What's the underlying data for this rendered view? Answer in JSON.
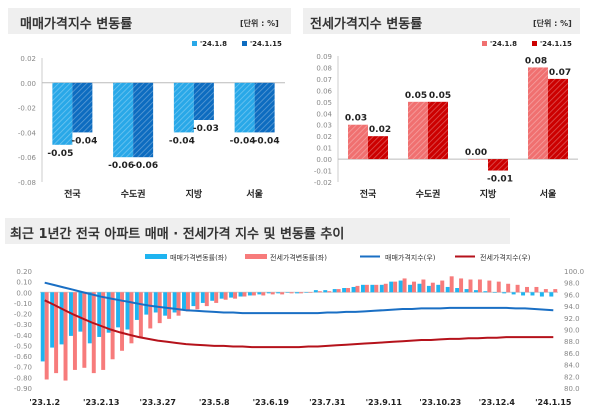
{
  "chart_data": [
    {
      "type": "bar",
      "title": "매매가격지수 변동률",
      "unit": "[단위 : %]",
      "categories": [
        "전국",
        "수도권",
        "지방",
        "서울"
      ],
      "series": [
        {
          "name": "'24.1.8",
          "color": "#29a8e8",
          "values": [
            -0.05,
            -0.06,
            -0.04,
            -0.04
          ]
        },
        {
          "name": "'24.1.15",
          "color": "#0d6cc0",
          "values": [
            -0.04,
            -0.06,
            -0.03,
            -0.04
          ]
        }
      ],
      "labels": [
        [
          "-0.05",
          "-0.06",
          "-0.04",
          "-0.04"
        ],
        [
          "-0.04",
          "-0.06",
          "-0.03",
          "-0.04"
        ]
      ],
      "ylim": [
        -0.08,
        0.02
      ],
      "yticks": [
        "0.02",
        "0.00",
        "-0.02",
        "-0.04",
        "-0.06",
        "-0.08"
      ]
    },
    {
      "type": "bar",
      "title": "전세가격지수 변동률",
      "unit": "[단위 : %]",
      "categories": [
        "전국",
        "수도권",
        "지방",
        "서울"
      ],
      "series": [
        {
          "name": "'24.1.8",
          "color": "#f07070",
          "values": [
            0.03,
            0.05,
            0.0,
            0.08
          ]
        },
        {
          "name": "'24.1.15",
          "color": "#cc0000",
          "values": [
            0.02,
            0.05,
            -0.01,
            0.07
          ]
        }
      ],
      "labels": [
        [
          "0.03",
          "0.05",
          "0.00",
          "0.08"
        ],
        [
          "0.02",
          "0.05",
          "-0.01",
          "0.07"
        ]
      ],
      "ylim": [
        -0.02,
        0.09
      ],
      "yticks": [
        "0.09",
        "0.08",
        "0.07",
        "0.06",
        "0.05",
        "0.04",
        "0.03",
        "0.02",
        "0.01",
        "0.00",
        "-0.01",
        "-0.02"
      ]
    },
    {
      "type": "bar+line",
      "title": "최근 1년간 전국 아파트 매매 · 전세가격 지수 및 변동률 추이",
      "xticks": [
        "'23.1.2",
        "'23.2.13",
        "'23.3.27",
        "'23.5.8",
        "'23.6.19",
        "'23.7.31",
        "'23.9.11",
        "'23.10.23",
        "'23.12.4",
        "'24.1.15"
      ],
      "ylim_left": [
        -0.9,
        0.2
      ],
      "ylim_right": [
        80,
        100
      ],
      "yticks_left": [
        "0.20",
        "0.10",
        "0.00",
        "-0.10",
        "-0.20",
        "-0.30",
        "-0.40",
        "-0.50",
        "-0.60",
        "-0.70",
        "-0.80",
        "-0.90"
      ],
      "yticks_right": [
        "100.0",
        "98.0",
        "96.0",
        "94.0",
        "92.0",
        "90.0",
        "88.0",
        "86.0",
        "84.0",
        "82.0",
        "80.0"
      ],
      "series": [
        {
          "name": "매매가격변동률(좌)",
          "kind": "bar",
          "color": "#1fb4f0",
          "values": [
            -0.65,
            -0.52,
            -0.49,
            -0.41,
            -0.37,
            -0.48,
            -0.42,
            -0.38,
            -0.33,
            -0.35,
            -0.26,
            -0.21,
            -0.19,
            -0.22,
            -0.19,
            -0.16,
            -0.13,
            -0.1,
            -0.08,
            -0.06,
            -0.05,
            -0.04,
            -0.03,
            -0.02,
            -0.01,
            -0.01,
            0.0,
            -0.01,
            0.0,
            0.02,
            0.02,
            0.03,
            0.04,
            0.05,
            0.07,
            0.07,
            0.07,
            0.1,
            0.11,
            0.07,
            0.08,
            0.06,
            0.07,
            0.05,
            0.04,
            0.03,
            0.02,
            0.01,
            0.0,
            -0.01,
            -0.02,
            -0.03,
            -0.03,
            -0.04,
            -0.04
          ]
        },
        {
          "name": "전세가격변동률(좌)",
          "kind": "bar",
          "color": "#f77b7b",
          "values": [
            -0.82,
            -0.76,
            -0.83,
            -0.73,
            -0.71,
            -0.76,
            -0.73,
            -0.63,
            -0.55,
            -0.48,
            -0.43,
            -0.34,
            -0.29,
            -0.25,
            -0.22,
            -0.18,
            -0.16,
            -0.13,
            -0.1,
            -0.07,
            -0.06,
            -0.04,
            -0.03,
            -0.03,
            -0.02,
            -0.02,
            -0.01,
            -0.01,
            0.0,
            0.01,
            0.01,
            0.03,
            0.04,
            0.06,
            0.07,
            0.07,
            0.08,
            0.1,
            0.13,
            0.1,
            0.12,
            0.09,
            0.11,
            0.15,
            0.13,
            0.12,
            0.12,
            0.11,
            0.1,
            0.08,
            0.07,
            0.05,
            0.05,
            0.03,
            0.03
          ]
        },
        {
          "name": "매매가격지수(우)",
          "kind": "line",
          "color": "#1a6fc4",
          "values": [
            98.0,
            97.6,
            97.2,
            96.8,
            96.4,
            96.0,
            95.6,
            95.3,
            95.0,
            94.7,
            94.4,
            94.1,
            93.9,
            93.7,
            93.5,
            93.3,
            93.2,
            93.1,
            93.0,
            92.9,
            92.9,
            92.8,
            92.8,
            92.8,
            92.8,
            92.8,
            92.8,
            92.8,
            92.8,
            92.8,
            92.9,
            92.9,
            93.0,
            93.0,
            93.1,
            93.2,
            93.3,
            93.4,
            93.5,
            93.5,
            93.6,
            93.6,
            93.6,
            93.7,
            93.7,
            93.7,
            93.7,
            93.7,
            93.7,
            93.7,
            93.6,
            93.6,
            93.5,
            93.4,
            93.3
          ]
        },
        {
          "name": "전세가격지수(우)",
          "kind": "line",
          "color": "#b5121b",
          "values": [
            95.0,
            94.2,
            93.4,
            92.6,
            91.9,
            91.2,
            90.6,
            90.0,
            89.5,
            89.1,
            88.7,
            88.4,
            88.1,
            87.9,
            87.7,
            87.5,
            87.4,
            87.3,
            87.2,
            87.2,
            87.1,
            87.1,
            87.0,
            87.0,
            87.0,
            87.0,
            87.0,
            87.0,
            87.1,
            87.1,
            87.2,
            87.3,
            87.4,
            87.5,
            87.6,
            87.7,
            87.8,
            87.9,
            88.0,
            88.1,
            88.2,
            88.2,
            88.3,
            88.4,
            88.4,
            88.5,
            88.5,
            88.6,
            88.6,
            88.7,
            88.7,
            88.7,
            88.7,
            88.7,
            88.7
          ]
        }
      ]
    }
  ]
}
